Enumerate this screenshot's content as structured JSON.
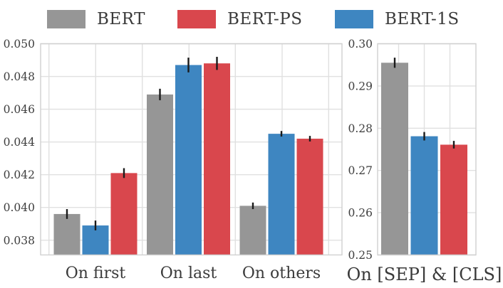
{
  "figure": {
    "background": "#ffffff",
    "grid_color": "#e0e0e0",
    "spine_color": "#d0d0d0",
    "text_color": "#3a3a3a"
  },
  "chart_data": {
    "type": "bar",
    "grid": true,
    "legend_position": "top",
    "error_bars": true,
    "error_bar_color": "#1b1b1b",
    "legend": [
      {
        "name": "BERT",
        "color": "#969696"
      },
      {
        "name": "BERT-PS",
        "color": "#d9474d"
      },
      {
        "name": "BERT-1S",
        "color": "#3e86c1"
      }
    ],
    "panels": [
      {
        "categories": [
          "On first",
          "On last",
          "On others"
        ],
        "series": [
          {
            "name": "BERT",
            "color": "#969696",
            "values": [
              0.0396,
              0.0469,
              0.0401
            ],
            "errors": [
              0.0003,
              0.00035,
              0.0002
            ]
          },
          {
            "name": "BERT-1S",
            "color": "#3e86c1",
            "values": [
              0.0389,
              0.0487,
              0.0445
            ],
            "errors": [
              0.0003,
              0.00045,
              0.00017
            ]
          },
          {
            "name": "BERT-PS",
            "color": "#d9474d",
            "values": [
              0.0421,
              0.0488,
              0.0442
            ],
            "errors": [
              0.0003,
              0.0004,
              0.00017
            ]
          }
        ],
        "ylim": [
          0.0371,
          0.05
        ],
        "yticks": [
          0.038,
          0.04,
          0.042,
          0.044,
          0.046,
          0.048,
          0.05
        ],
        "yticklabels": [
          "0.038",
          "0.040",
          "0.042",
          "0.044",
          "0.046",
          "0.048",
          "0.050"
        ]
      },
      {
        "categories": [
          "On [SEP] & [CLS]"
        ],
        "series": [
          {
            "name": "BERT",
            "color": "#969696",
            "values": [
              0.2955
            ],
            "errors": [
              0.0012
            ]
          },
          {
            "name": "BERT-1S",
            "color": "#3e86c1",
            "values": [
              0.2781
            ],
            "errors": [
              0.001
            ]
          },
          {
            "name": "BERT-PS",
            "color": "#d9474d",
            "values": [
              0.2761
            ],
            "errors": [
              0.0009
            ]
          }
        ],
        "ylim": [
          0.25,
          0.3
        ],
        "yticks": [
          0.25,
          0.26,
          0.27,
          0.28,
          0.29,
          0.3
        ],
        "yticklabels": [
          "0.25",
          "0.26",
          "0.27",
          "0.28",
          "0.29",
          "0.30"
        ]
      }
    ]
  }
}
